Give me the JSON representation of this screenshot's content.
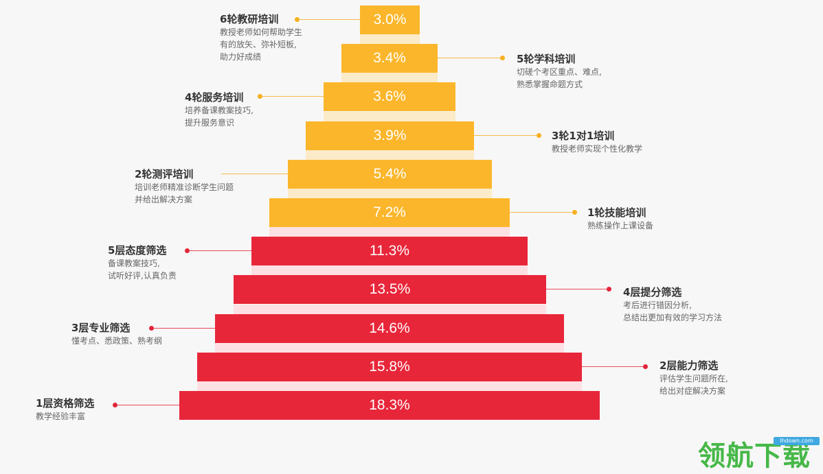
{
  "colors": {
    "yellow": "#fbb62b",
    "red": "#e8263a",
    "text": "#333333",
    "desc": "#666666"
  },
  "levels": [
    {
      "value": "3.0%",
      "color": "yellow",
      "side": "left",
      "title": "6轮教研培训",
      "desc": [
        "教授老师如何帮助学生",
        "有的放矢、弥补短板,",
        "助力好成绩"
      ]
    },
    {
      "value": "3.4%",
      "color": "yellow",
      "side": "right",
      "title": "5轮学科培训",
      "desc": [
        "切磋个考区重点、难点,",
        "熟悉掌握命题方式"
      ]
    },
    {
      "value": "3.6%",
      "color": "yellow",
      "side": "left",
      "title": "4轮服务培训",
      "desc": [
        "培养备课教案技巧,",
        "提升服务意识"
      ]
    },
    {
      "value": "3.9%",
      "color": "yellow",
      "side": "right",
      "title": "3轮1对1培训",
      "desc": [
        "教授老师实现个性化教学"
      ]
    },
    {
      "value": "5.4%",
      "color": "yellow",
      "side": "left",
      "title": "2轮测评培训",
      "desc": [
        "培训老师精准诊断学生问题",
        "并给出解决方案"
      ]
    },
    {
      "value": "7.2%",
      "color": "yellow",
      "side": "right",
      "title": "1轮技能培训",
      "desc": [
        "熟练操作上课设备"
      ]
    },
    {
      "value": "11.3%",
      "color": "red",
      "side": "left",
      "title": "5层态度筛选",
      "desc": [
        "备课教案技巧,",
        "试听好评,认真负责"
      ]
    },
    {
      "value": "13.5%",
      "color": "red",
      "side": "right",
      "title": "4层提分筛选",
      "desc": [
        "考后进行错因分析,",
        "总结出更加有效的学习方法"
      ]
    },
    {
      "value": "14.6%",
      "color": "red",
      "side": "left",
      "title": "3层专业筛选",
      "desc": [
        "懂考点、悉政策、熟考纲"
      ]
    },
    {
      "value": "15.8%",
      "color": "red",
      "side": "right",
      "title": "2层能力筛选",
      "desc": [
        "评估学生问题所在,",
        "给出对症解决方案"
      ]
    },
    {
      "value": "18.3%",
      "color": "red",
      "side": "left",
      "title": "1层资格筛选",
      "desc": [
        "教学经验丰富"
      ]
    }
  ],
  "watermark": {
    "text": "领航下载",
    "url": "lhdown.com"
  }
}
